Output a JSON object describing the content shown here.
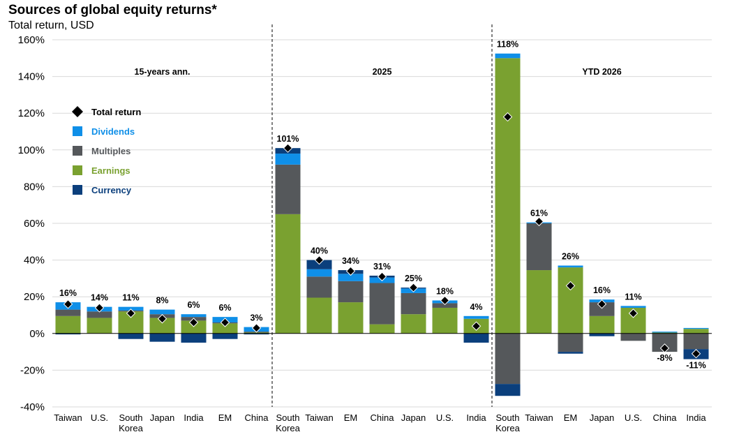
{
  "header": {
    "title": "Sources of global equity returns*",
    "subtitle": "Total return, USD"
  },
  "legend": [
    {
      "key": "total",
      "label": "Total return",
      "color": "#000000",
      "marker": "diamond"
    },
    {
      "key": "dividends",
      "label": "Dividends",
      "color": "#0f8fe8",
      "marker": "square"
    },
    {
      "key": "multiples",
      "label": "Multiples",
      "color": "#55585b",
      "marker": "square"
    },
    {
      "key": "earnings",
      "label": "Earnings",
      "color": "#7aa130",
      "marker": "square"
    },
    {
      "key": "currency",
      "label": "Currency",
      "color": "#0b3f7c",
      "marker": "square"
    }
  ],
  "chart_data": {
    "type": "bar",
    "stacked": true,
    "ylim": [
      -40,
      160
    ],
    "yticks": [
      -40,
      -20,
      0,
      20,
      40,
      60,
      80,
      100,
      120,
      140,
      160
    ],
    "ytick_labels": [
      "-40%",
      "-20%",
      "0%",
      "20%",
      "40%",
      "60%",
      "80%",
      "100%",
      "120%",
      "140%",
      "160%"
    ],
    "grid": true,
    "legend_position": "top-left",
    "colors": {
      "earnings": "#7aa130",
      "multiples": "#55585b",
      "dividends": "#0f8fe8",
      "currency": "#0b3f7c"
    },
    "groups": [
      {
        "label": "15-years ann.",
        "bars": [
          {
            "category": "Taiwan",
            "earnings": 9.5,
            "multiples": 3.5,
            "dividends": 4.0,
            "currency": -0.5,
            "total": 16,
            "total_label": "16%"
          },
          {
            "category": "U.S.",
            "earnings": 8.5,
            "multiples": 3.5,
            "dividends": 2.5,
            "currency": 0,
            "total": 14,
            "total_label": "14%"
          },
          {
            "category": "South Korea",
            "earnings": 12.0,
            "multiples": 0.5,
            "dividends": 2.0,
            "currency": -3.0,
            "total": 11,
            "total_label": "11%"
          },
          {
            "category": "Japan",
            "earnings": 8.5,
            "multiples": 2.0,
            "dividends": 2.5,
            "currency": -4.5,
            "total": 8,
            "total_label": "8%"
          },
          {
            "category": "India",
            "earnings": 7.0,
            "multiples": 2.0,
            "dividends": 1.5,
            "currency": -5.0,
            "total": 6,
            "total_label": "6%"
          },
          {
            "category": "EM",
            "earnings": 5.5,
            "multiples": 0.5,
            "dividends": 3.0,
            "currency": -3.0,
            "total": 6,
            "total_label": "6%"
          },
          {
            "category": "China",
            "earnings": 0.5,
            "multiples": 0.5,
            "dividends": 2.5,
            "currency": -0.5,
            "total": 3,
            "total_label": "3%"
          }
        ]
      },
      {
        "label": "2025",
        "bars": [
          {
            "category": "South Korea",
            "earnings": 65,
            "multiples": 27,
            "dividends": 6,
            "currency": 3,
            "total": 101,
            "total_label": "101%"
          },
          {
            "category": "Taiwan",
            "earnings": 19.5,
            "multiples": 11.5,
            "dividends": 4,
            "currency": 5,
            "total": 40,
            "total_label": "40%"
          },
          {
            "category": "EM",
            "earnings": 17,
            "multiples": 11.5,
            "dividends": 4,
            "currency": 2,
            "total": 34,
            "total_label": "34%"
          },
          {
            "category": "China",
            "earnings": 5,
            "multiples": 22.5,
            "dividends": 3,
            "currency": 1,
            "total": 31,
            "total_label": "31%"
          },
          {
            "category": "Japan",
            "earnings": 10.5,
            "multiples": 11.5,
            "dividends": 2.5,
            "currency": 0.5,
            "total": 25,
            "total_label": "25%"
          },
          {
            "category": "U.S.",
            "earnings": 14,
            "multiples": 2.5,
            "dividends": 1.5,
            "currency": 0,
            "total": 18,
            "total_label": "18%"
          },
          {
            "category": "India",
            "earnings": 8,
            "multiples": 0,
            "dividends": 1.5,
            "currency": -5,
            "total": 4,
            "total_label": "4%"
          }
        ]
      },
      {
        "label": "YTD 2026",
        "bars": [
          {
            "category": "South Korea",
            "earnings": 150,
            "multiples": -27.5,
            "dividends": 2.5,
            "currency": -6.5,
            "total": 118,
            "total_label": "118%"
          },
          {
            "category": "Taiwan",
            "earnings": 34.5,
            "multiples": 25.5,
            "dividends": 0.5,
            "currency": 0,
            "total": 61,
            "total_label": "61%"
          },
          {
            "category": "EM",
            "earnings": 36,
            "multiples": -10,
            "dividends": 1,
            "currency": -1,
            "total": 26,
            "total_label": "26%"
          },
          {
            "category": "Japan",
            "earnings": 9.5,
            "multiples": 7.5,
            "dividends": 1.5,
            "currency": -1.5,
            "total": 16,
            "total_label": "16%"
          },
          {
            "category": "U.S.",
            "earnings": 14,
            "multiples": -4,
            "dividends": 1,
            "currency": 0,
            "total": 11,
            "total_label": "11%"
          },
          {
            "category": "China",
            "earnings": 0.5,
            "multiples": -10,
            "dividends": 0.5,
            "currency": 0,
            "total": -8,
            "total_label": "-8%"
          },
          {
            "category": "India",
            "earnings": 2.5,
            "multiples": -8.5,
            "dividends": 0.5,
            "currency": -5.5,
            "total": -11,
            "total_label": "-11%"
          }
        ]
      }
    ]
  }
}
